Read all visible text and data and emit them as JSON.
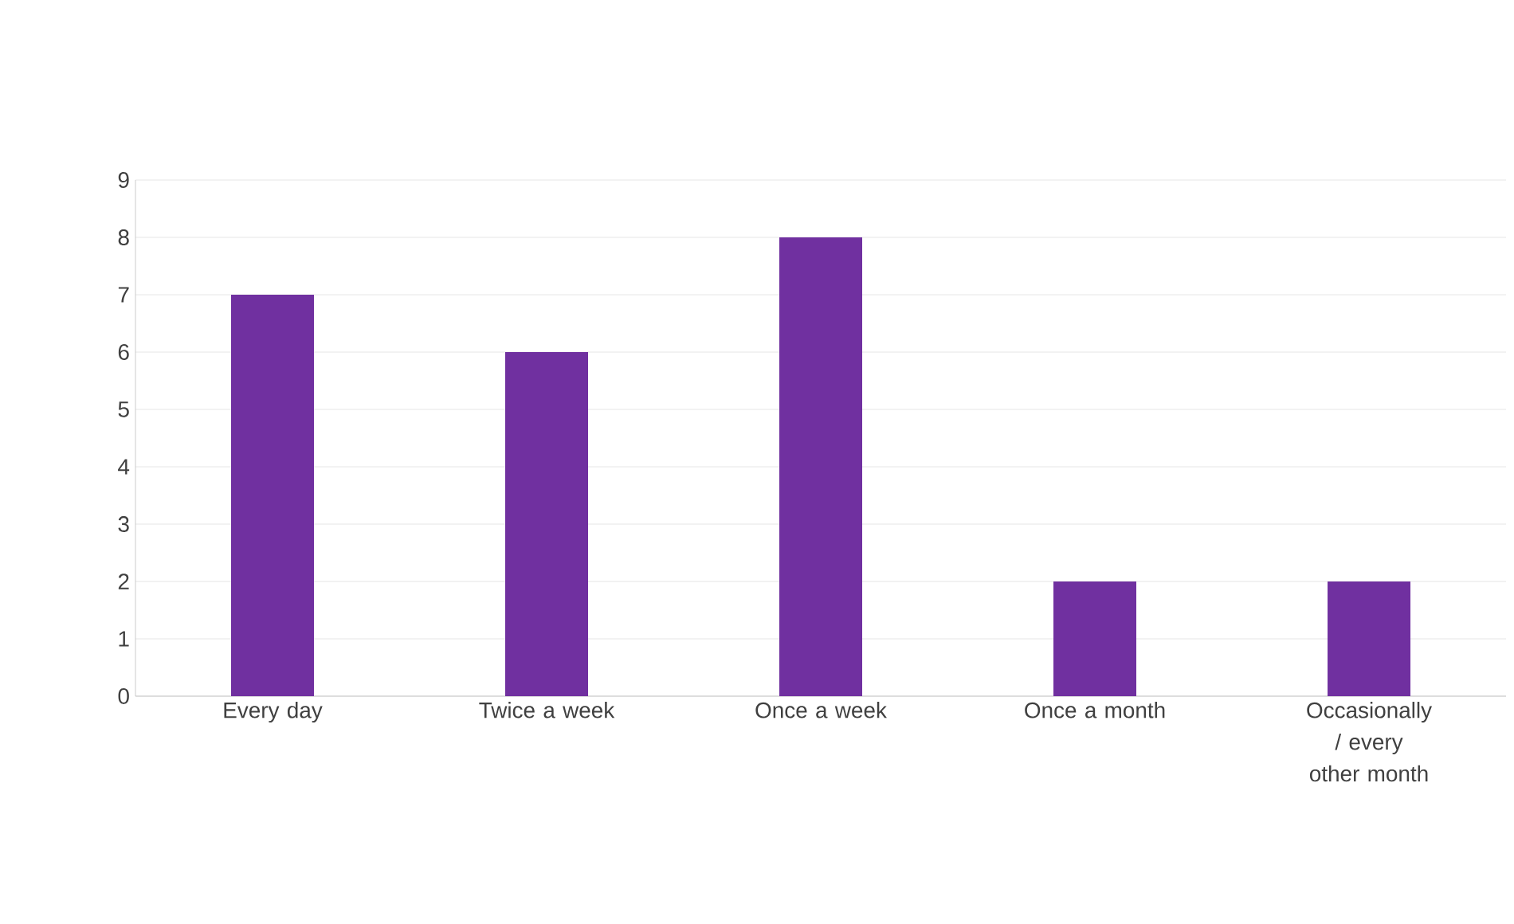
{
  "chart_data": {
    "type": "bar",
    "categories": [
      "Every day",
      "Twice a week",
      "Once a week",
      "Once a month",
      "Occasionally / every other month"
    ],
    "values": [
      7,
      6,
      8,
      2,
      2
    ],
    "color": "#7030a0",
    "ylim": [
      0,
      9
    ],
    "yticks": [
      0,
      1,
      2,
      3,
      4,
      5,
      6,
      7,
      8,
      9
    ],
    "grid": "y"
  }
}
